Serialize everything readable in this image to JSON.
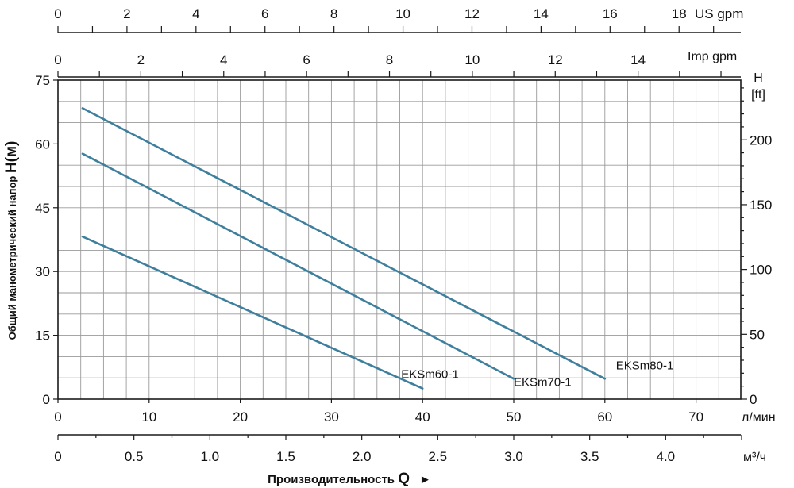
{
  "chart_data": {
    "type": "line",
    "title": "",
    "ylabel": "Общий манометрический напор",
    "ylabel_symbol": "H(м)",
    "xlabel": "Производительность",
    "xlabel_symbol": "Q",
    "xlabel_arrow": "►",
    "x_unit": "л/мин",
    "x_m3_unit": "м³/ч",
    "y_right_unit_line1": "H",
    "y_right_unit_line2": "[ft]",
    "us_gpm_unit": "US gpm",
    "imp_gpm_unit": "Imp gpm",
    "xlim": [
      0,
      80
    ],
    "ylim": [
      0,
      75
    ],
    "grid": true,
    "x_ticks": [
      "0",
      "10",
      "20",
      "30",
      "40",
      "50",
      "60",
      "70"
    ],
    "y_ticks": [
      "0",
      "15",
      "30",
      "45",
      "60",
      "75"
    ],
    "y_right_ticks": [
      "0",
      "50",
      "100",
      "150",
      "200"
    ],
    "m3h_ticks": [
      "0",
      "0.5",
      "1.0",
      "1.5",
      "2.0",
      "2.5",
      "3.0",
      "3.5",
      "4.0"
    ],
    "us_gpm_ticks": [
      "0",
      "2",
      "4",
      "6",
      "8",
      "10",
      "12",
      "14",
      "16",
      "18"
    ],
    "imp_gpm_ticks": [
      "0",
      "2",
      "4",
      "6",
      "8",
      "10",
      "12",
      "14"
    ],
    "series": [
      {
        "name": "EKSm60-1",
        "color": "#3f7f9e",
        "points": [
          [
            2.7,
            38.2
          ],
          [
            40,
            2.5
          ]
        ]
      },
      {
        "name": "EKSm70-1",
        "color": "#3f7f9e",
        "points": [
          [
            2.7,
            57.7
          ],
          [
            50,
            4.8
          ]
        ]
      },
      {
        "name": "EKSm80-1",
        "color": "#3f7f9e",
        "points": [
          [
            2.7,
            68.4
          ],
          [
            60,
            4.8
          ]
        ]
      }
    ]
  }
}
